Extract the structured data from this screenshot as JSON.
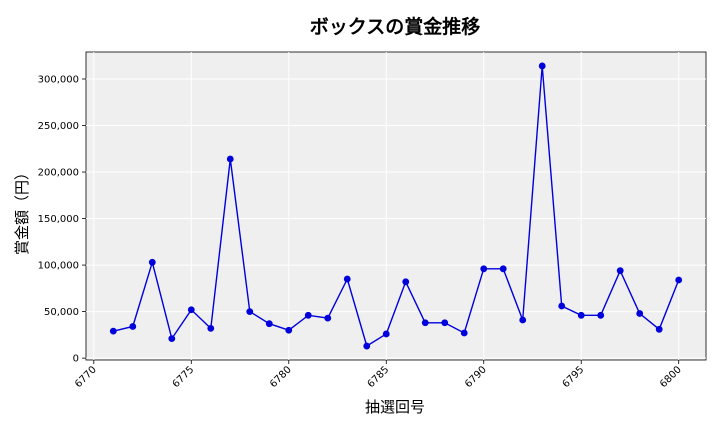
{
  "chart_data": {
    "type": "line",
    "title": "ボックスの賞金推移",
    "xlabel": "抽選回号",
    "ylabel": "賞金額（円）",
    "xlim": [
      6769.6,
      6801.4
    ],
    "ylim": [
      -2000,
      329000
    ],
    "x_ticks": [
      6770,
      6775,
      6780,
      6785,
      6790,
      6795,
      6800
    ],
    "x_tick_labels": [
      "6770",
      "6775",
      "6780",
      "6785",
      "6790",
      "6795",
      "6800"
    ],
    "y_ticks": [
      0,
      50000,
      100000,
      150000,
      200000,
      250000,
      300000
    ],
    "y_tick_labels": [
      "0",
      "50,000",
      "100,000",
      "150,000",
      "200,000",
      "250,000",
      "300,000"
    ],
    "grid": true,
    "colors": {
      "line": "#0000dd",
      "marker": "#0000dd",
      "plot_bg": "#efefef",
      "grid": "#ffffff"
    },
    "series": [
      {
        "x": [
          6771,
          6772,
          6773,
          6774,
          6775,
          6776,
          6777,
          6778,
          6779,
          6780,
          6781,
          6782,
          6783,
          6784,
          6785,
          6786,
          6787,
          6788,
          6789,
          6790,
          6791,
          6792,
          6793,
          6794,
          6795,
          6796,
          6797,
          6798,
          6799,
          6800
        ],
        "values": [
          29000,
          34000,
          103000,
          21000,
          52000,
          32000,
          214000,
          50000,
          37000,
          30000,
          46000,
          43000,
          85000,
          13000,
          26000,
          82000,
          38000,
          38000,
          27000,
          96000,
          96000,
          41000,
          314000,
          56000,
          46000,
          46000,
          94000,
          48000,
          31000,
          84000
        ]
      }
    ]
  }
}
